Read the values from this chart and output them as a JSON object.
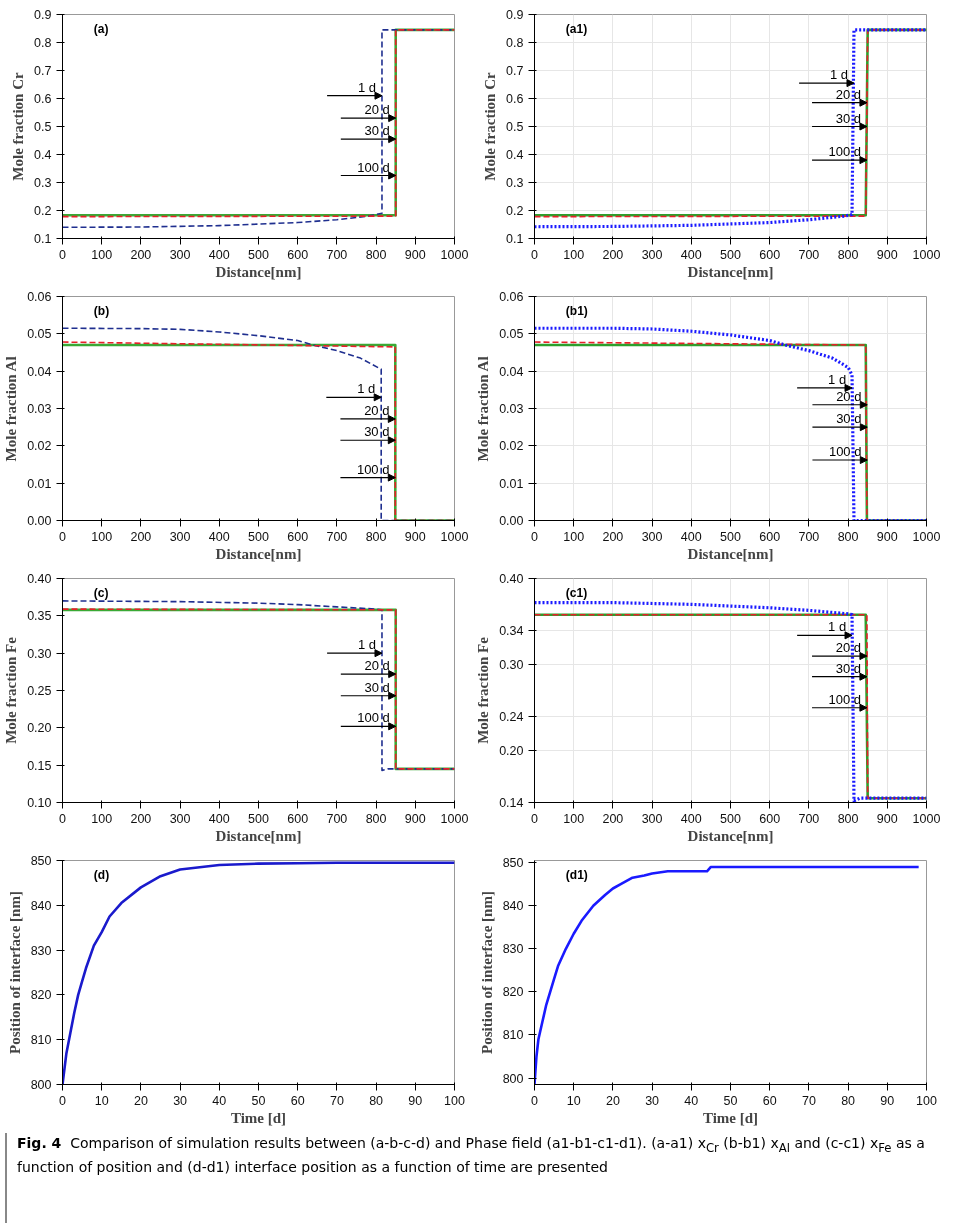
{
  "chart_data": [
    {
      "type": "line",
      "xlabel": "Distance[nm]",
      "ylabel": "Mole fraction Cr",
      "xlim": [
        0,
        1000
      ],
      "ylim": [
        0.1,
        0.9
      ],
      "xticks": [
        0,
        100,
        200,
        300,
        400,
        500,
        600,
        700,
        800,
        900,
        1000
      ],
      "yticks": [
        0.1,
        0.2,
        0.3,
        0.4,
        0.5,
        0.6,
        0.7,
        0.8,
        0.9
      ],
      "grid": false,
      "marker": "none",
      "annotations": [
        "(a)",
        {
          "text": "1 d",
          "x": 815,
          "y": 0.61
        },
        {
          "text": "20 d",
          "x": 850,
          "y": 0.53
        },
        {
          "text": "30 d",
          "x": 850,
          "y": 0.455
        },
        {
          "text": "100 d",
          "x": 850,
          "y": 0.325
        }
      ],
      "series": [
        {
          "color": "#1f2f8f",
          "line_style": "dashed",
          "x": [
            0,
            200,
            400,
            600,
            700,
            780,
            815,
            815,
            1000
          ],
          "values": [
            0.14,
            0.141,
            0.146,
            0.157,
            0.167,
            0.18,
            0.19,
            0.845,
            0.845
          ]
        },
        {
          "color": "#e8202a",
          "line_style": "dashed",
          "x": [
            0,
            850,
            850,
            1000
          ],
          "values": [
            0.178,
            0.18,
            0.845,
            0.845
          ]
        },
        {
          "color": "#3aa935",
          "line_style": "solid",
          "x": [
            0,
            850,
            850,
            1000
          ],
          "values": [
            0.183,
            0.183,
            0.845,
            0.845
          ]
        }
      ]
    },
    {
      "type": "line",
      "xlabel": "Distance[nm]",
      "ylabel": "Mole fraction Cr",
      "xlim": [
        0,
        1000
      ],
      "ylim": [
        0.1,
        0.9
      ],
      "xticks": [
        0,
        100,
        200,
        300,
        400,
        500,
        600,
        700,
        800,
        900,
        1000
      ],
      "yticks": [
        0.1,
        0.2,
        0.3,
        0.4,
        0.5,
        0.6,
        0.7,
        0.8,
        0.9
      ],
      "grid": true,
      "marker": "none",
      "annotations": [
        "(a1)",
        {
          "text": "1 d",
          "x": 815,
          "y": 0.655
        },
        {
          "text": "20 d",
          "x": 848,
          "y": 0.585
        },
        {
          "text": "30 d",
          "x": 848,
          "y": 0.5
        },
        {
          "text": "100 d",
          "x": 848,
          "y": 0.38
        }
      ],
      "series": [
        {
          "color": "#1a1aff",
          "line_style": "dotted",
          "x": [
            0,
            200,
            400,
            600,
            700,
            790,
            810,
            815,
            1000
          ],
          "values": [
            0.142,
            0.143,
            0.147,
            0.157,
            0.167,
            0.18,
            0.185,
            0.845,
            0.845
          ]
        },
        {
          "color": "#e8202a",
          "line_style": "dashed",
          "x": [
            0,
            845,
            850,
            1000
          ],
          "values": [
            0.178,
            0.18,
            0.845,
            0.845
          ]
        },
        {
          "color": "#2ca02c",
          "line_style": "solid",
          "x": [
            0,
            845,
            850,
            1000
          ],
          "values": [
            0.183,
            0.183,
            0.845,
            0.845
          ]
        }
      ]
    },
    {
      "type": "line",
      "xlabel": "Distance[nm]",
      "ylabel": "Mole fraction Al",
      "xlim": [
        0,
        1000
      ],
      "ylim": [
        0,
        0.06
      ],
      "xticks": [
        0,
        100,
        200,
        300,
        400,
        500,
        600,
        700,
        800,
        900,
        1000
      ],
      "yticks": [
        {
          "value": 0,
          "label": "0.00"
        },
        {
          "value": 0.01,
          "label": "0.01"
        },
        {
          "value": 0.02,
          "label": "0.02"
        },
        {
          "value": 0.03,
          "label": "0.03"
        },
        {
          "value": 0.04,
          "label": "0.04"
        },
        {
          "value": 0.05,
          "label": "0.05"
        },
        {
          "value": 0.06,
          "label": "0.06"
        }
      ],
      "grid": false,
      "marker": "none",
      "annotations": [
        "(b)",
        {
          "text": "1 d",
          "x": 813,
          "y": 0.033
        },
        {
          "text": "20 d",
          "x": 849,
          "y": 0.0272
        },
        {
          "text": "30 d",
          "x": 849,
          "y": 0.0215
        },
        {
          "text": "100 d",
          "x": 849,
          "y": 0.0115
        }
      ],
      "series": [
        {
          "color": "#1f2f8f",
          "line_style": "dashed",
          "x": [
            0,
            200,
            300,
            400,
            500,
            600,
            640,
            700,
            760,
            813,
            813,
            1000
          ],
          "values": [
            0.0515,
            0.0514,
            0.0512,
            0.0505,
            0.0495,
            0.0482,
            0.047,
            0.0455,
            0.0435,
            0.0405,
            0,
            0
          ]
        },
        {
          "color": "#e8202a",
          "line_style": "dashed",
          "x": [
            0,
            849,
            849,
            1000
          ],
          "values": [
            0.0478,
            0.0465,
            0,
            0
          ]
        },
        {
          "color": "#3aa935",
          "line_style": "solid",
          "x": [
            0,
            849,
            849,
            1000
          ],
          "values": [
            0.047,
            0.047,
            0,
            0
          ]
        }
      ]
    },
    {
      "type": "line",
      "xlabel": "Distance[nm]",
      "ylabel": "Mole fraction Al",
      "xlim": [
        0,
        1000
      ],
      "ylim": [
        0,
        0.06
      ],
      "xticks": [
        0,
        100,
        200,
        300,
        400,
        500,
        600,
        700,
        800,
        900,
        1000
      ],
      "yticks": [
        {
          "value": 0,
          "label": "0.00"
        },
        {
          "value": 0.01,
          "label": "0.01"
        },
        {
          "value": 0.02,
          "label": "0.02"
        },
        {
          "value": 0.03,
          "label": "0.03"
        },
        {
          "value": 0.04,
          "label": "0.04"
        },
        {
          "value": 0.05,
          "label": "0.05"
        },
        {
          "value": 0.06,
          "label": "0.06"
        }
      ],
      "grid": true,
      "marker": "none",
      "annotations": [
        "(b1)",
        {
          "text": "1 d",
          "x": 810,
          "y": 0.0355
        },
        {
          "text": "20 d",
          "x": 849,
          "y": 0.031
        },
        {
          "text": "30 d",
          "x": 849,
          "y": 0.025
        },
        {
          "text": "100 d",
          "x": 849,
          "y": 0.0162
        }
      ],
      "series": [
        {
          "color": "#1a1aff",
          "line_style": "dotted",
          "x": [
            0,
            200,
            300,
            400,
            500,
            600,
            640,
            700,
            760,
            800,
            810,
            815,
            1000
          ],
          "values": [
            0.0515,
            0.0515,
            0.0513,
            0.0507,
            0.0497,
            0.0482,
            0.047,
            0.0455,
            0.0435,
            0.041,
            0.039,
            0,
            0
          ]
        },
        {
          "color": "#e8202a",
          "line_style": "dashed",
          "x": [
            0,
            845,
            848,
            1000
          ],
          "values": [
            0.0478,
            0.047,
            0,
            0
          ]
        },
        {
          "color": "#2ca02c",
          "line_style": "solid",
          "x": [
            0,
            845,
            848,
            1000
          ],
          "values": [
            0.047,
            0.047,
            0,
            0
          ]
        }
      ]
    },
    {
      "type": "line",
      "xlabel": "Distance[nm]",
      "ylabel": "Mole fraction Fe",
      "xlim": [
        0,
        1000
      ],
      "ylim": [
        0.1,
        0.4
      ],
      "xticks": [
        0,
        100,
        200,
        300,
        400,
        500,
        600,
        700,
        800,
        900,
        1000
      ],
      "yticks": [
        {
          "value": 0.1,
          "label": "0.10"
        },
        {
          "value": 0.15,
          "label": "0.15"
        },
        {
          "value": 0.2,
          "label": "0.20"
        },
        {
          "value": 0.25,
          "label": "0.25"
        },
        {
          "value": 0.3,
          "label": "0.30"
        },
        {
          "value": 0.35,
          "label": "0.35"
        },
        {
          "value": 0.4,
          "label": "0.40"
        }
      ],
      "grid": false,
      "marker": "none",
      "annotations": [
        "(c)",
        {
          "text": "1 d",
          "x": 815,
          "y": 0.3
        },
        {
          "text": "20 d",
          "x": 850,
          "y": 0.272
        },
        {
          "text": "30 d",
          "x": 850,
          "y": 0.243
        },
        {
          "text": "100 d",
          "x": 850,
          "y": 0.202
        }
      ],
      "series": [
        {
          "color": "#1f2f8f",
          "line_style": "dashed",
          "x": [
            0,
            300,
            500,
            600,
            700,
            800,
            815,
            815,
            830,
            1000
          ],
          "values": [
            0.37,
            0.369,
            0.367,
            0.365,
            0.362,
            0.359,
            0.358,
            0.143,
            0.145,
            0.145
          ]
        },
        {
          "color": "#e8202a",
          "line_style": "dashed",
          "x": [
            0,
            850,
            850,
            1000
          ],
          "values": [
            0.359,
            0.358,
            0.145,
            0.145
          ]
        },
        {
          "color": "#3aa935",
          "line_style": "solid",
          "x": [
            0,
            850,
            850,
            1000
          ],
          "values": [
            0.358,
            0.358,
            0.145,
            0.145
          ]
        }
      ]
    },
    {
      "type": "line",
      "xlabel": "Distance[nm]",
      "ylabel": "Mole fraction Fe",
      "xlim": [
        0,
        1000
      ],
      "ylim": [
        0.14,
        0.4
      ],
      "xticks": [
        0,
        100,
        200,
        300,
        400,
        500,
        600,
        700,
        800,
        900,
        1000
      ],
      "yticks": [
        {
          "value": 0.14,
          "label": "0.14"
        },
        {
          "value": 0.2,
          "label": "0.20"
        },
        {
          "value": 0.24,
          "label": "0.24"
        },
        {
          "value": 0.3,
          "label": "0.30"
        },
        {
          "value": 0.34,
          "label": "0.34"
        },
        {
          "value": 0.4,
          "label": "0.40"
        }
      ],
      "grid": true,
      "marker": "none",
      "annotations": [
        "(c1)",
        {
          "text": "1 d",
          "x": 810,
          "y": 0.334
        },
        {
          "text": "20 d",
          "x": 848,
          "y": 0.31
        },
        {
          "text": "30 d",
          "x": 848,
          "y": 0.286
        },
        {
          "text": "100 d",
          "x": 848,
          "y": 0.25
        }
      ],
      "series": [
        {
          "color": "#1a1aff",
          "line_style": "dotted",
          "x": [
            0,
            200,
            400,
            500,
            600,
            700,
            800,
            810,
            815,
            830,
            1000
          ],
          "values": [
            0.372,
            0.372,
            0.37,
            0.368,
            0.366,
            0.363,
            0.359,
            0.358,
            0.142,
            0.145,
            0.145
          ]
        },
        {
          "color": "#e8202a",
          "line_style": "dashed",
          "x": [
            0,
            848,
            850,
            1000
          ],
          "values": [
            0.358,
            0.358,
            0.145,
            0.145
          ]
        },
        {
          "color": "#2ca02c",
          "line_style": "solid",
          "x": [
            0,
            845,
            850,
            1000
          ],
          "values": [
            0.358,
            0.358,
            0.145,
            0.145
          ]
        }
      ]
    },
    {
      "type": "line",
      "xlabel": "Time [d]",
      "ylabel": "Position of interface [nm]",
      "xlim": [
        0,
        100
      ],
      "ylim": [
        800,
        850
      ],
      "xticks": [
        0,
        10,
        20,
        30,
        40,
        50,
        60,
        70,
        80,
        90,
        100
      ],
      "yticks": [
        800,
        810,
        820,
        830,
        840,
        850
      ],
      "grid": false,
      "marker": "none",
      "annotations": [
        "(d)"
      ],
      "series": [
        {
          "color": "#1a1acc",
          "line_style": "solid",
          "x": [
            0,
            1,
            2,
            3,
            4,
            5,
            6,
            8,
            10,
            12,
            15,
            20,
            25,
            30,
            40,
            50,
            60,
            70,
            100
          ],
          "values": [
            800,
            807,
            811.5,
            816,
            820,
            823,
            826,
            831,
            834,
            837.5,
            840.5,
            844,
            846.5,
            848,
            849,
            849.3,
            849.4,
            849.5,
            849.5
          ]
        }
      ]
    },
    {
      "type": "line",
      "xlabel": "Time [d]",
      "ylabel": "Position of interface [nm]",
      "xlim": [
        0,
        100
      ],
      "ylim": [
        798.5,
        850.5
      ],
      "xticks": [
        0,
        10,
        20,
        30,
        40,
        50,
        60,
        70,
        80,
        90,
        100
      ],
      "yticks": [
        800,
        810,
        820,
        830,
        840,
        850
      ],
      "grid": false,
      "marker": "none",
      "annotations": [
        "(d1)"
      ],
      "series": [
        {
          "color": "#1a1aff",
          "line_style": "solid",
          "x": [
            0,
            0.5,
            1,
            2,
            3,
            4,
            5,
            6,
            8,
            10,
            12,
            15,
            18,
            20,
            22,
            25,
            28,
            30,
            34,
            44,
            45,
            98
          ],
          "values": [
            798.5,
            805,
            809,
            813,
            817,
            820,
            823,
            826,
            830,
            833.5,
            836.5,
            840,
            842.5,
            844,
            845,
            846.5,
            847,
            847.5,
            848,
            848,
            849,
            849
          ]
        }
      ]
    },
    {
      "type": "other",
      "title": "Fig. 4",
      "annotations": [
        "Comparison of simulation results between (a-b-c-d) and Phase field (a1-b1-c1-d1). (a-a1) x$_{Cr}$ (b-b1) x$_{Al}$ and (c-c1) x$_{Fe}$ as a function of position and (d-d1) interface position as a function of time are presented"
      ]
    }
  ]
}
